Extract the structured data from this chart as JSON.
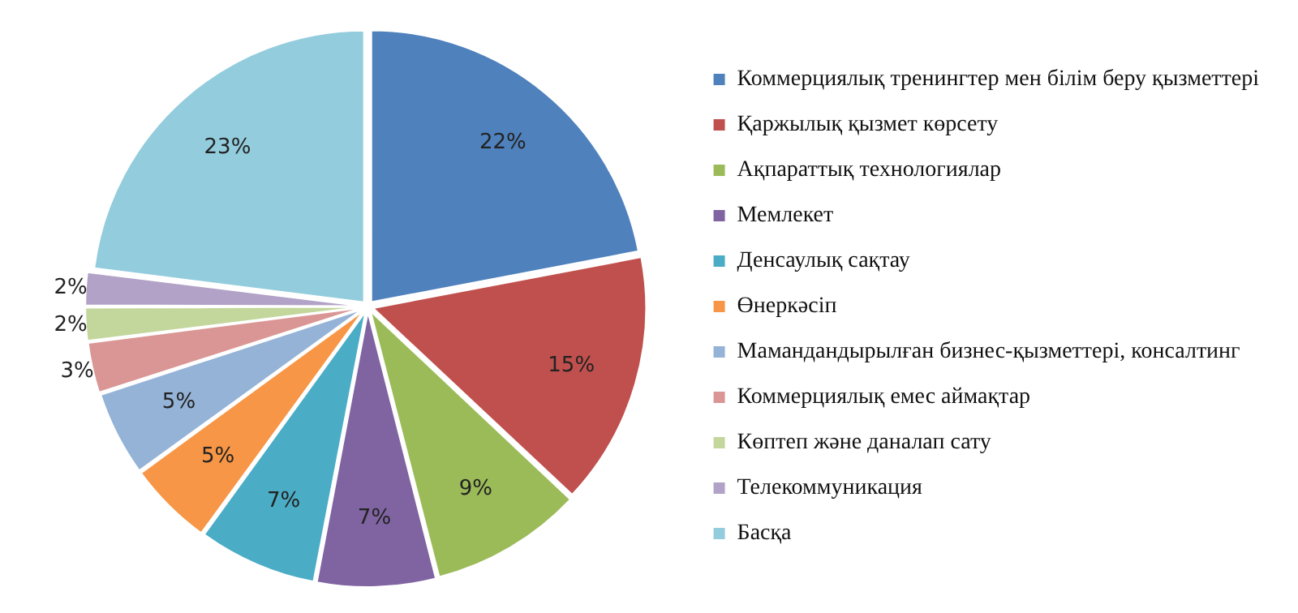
{
  "chart_data": {
    "type": "pie",
    "categories": [
      "Коммерциялық тренингтер мен білім беру қызметтері",
      "Қаржылық қызмет көрсету",
      "Ақпараттық технологиялар",
      "Мемлекет",
      "Денсаулық сақтау",
      "Өнеркәсіп",
      "Мамандандырылған бизнес-қызметтері, консалтинг",
      "Коммерциялық емес аймақтар",
      "Көптеп және даналап сату",
      "Телекоммуникация",
      "Басқа"
    ],
    "values": [
      22,
      15,
      9,
      7,
      7,
      5,
      5,
      3,
      2,
      2,
      23
    ],
    "colors": [
      "#4f81bd",
      "#c0504d",
      "#9bbb59",
      "#8064a2",
      "#4bacc6",
      "#f79646",
      "#95b3d7",
      "#da9694",
      "#c3d69b",
      "#b3a2c7",
      "#93cddd"
    ],
    "value_labels": [
      "22%",
      "15%",
      "9%",
      "7%",
      "7%",
      "5%",
      "5%",
      "3%",
      "2%",
      "2%",
      "23%"
    ],
    "legend": "right"
  }
}
